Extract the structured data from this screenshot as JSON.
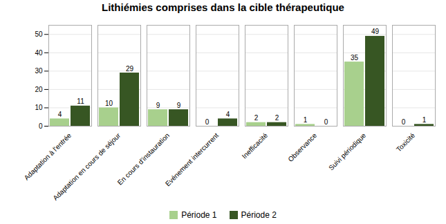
{
  "chart_data": {
    "type": "bar",
    "title": "Lithiémies comprises dans la cible thérapeutique",
    "categories": [
      "Adaptation à l'entrée",
      "Adaptation en cours de séjour",
      "En cours d'instauration",
      "Evénement intercurrent",
      "Inefficacité",
      "Observance",
      "Suivi périodique",
      "Toxicité"
    ],
    "series": [
      {
        "name": "Période 1",
        "color": "#a8d08d",
        "values": [
          4,
          10,
          9,
          0,
          2,
          1,
          35,
          0
        ]
      },
      {
        "name": "Période 2",
        "color": "#375623",
        "values": [
          11,
          29,
          9,
          4,
          2,
          0,
          49,
          1
        ]
      }
    ],
    "ylim": [
      0,
      55
    ],
    "yticks": [
      0,
      10,
      20,
      30,
      40,
      50
    ],
    "grid": true,
    "data_labels": true,
    "legend": "bottom"
  }
}
